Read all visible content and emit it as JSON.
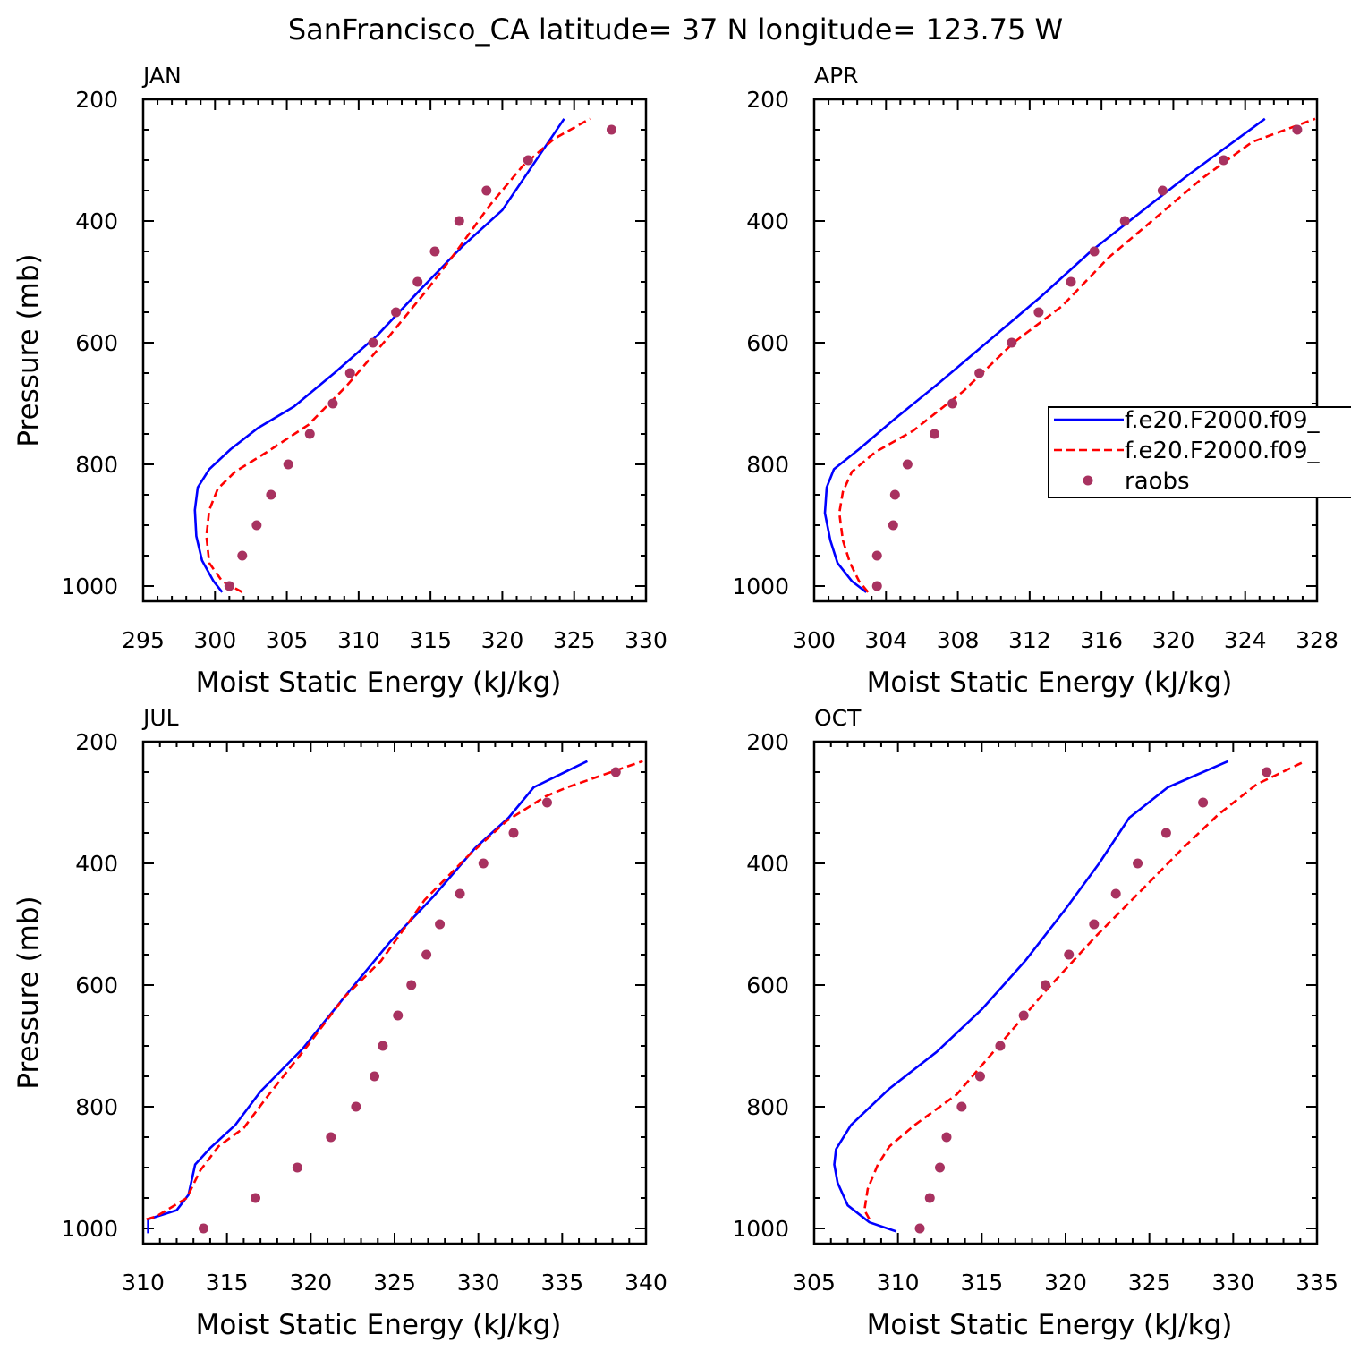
{
  "title": "SanFrancisco_CA  latitude= 37 N longitude= 123.75 W",
  "legend": {
    "entries": [
      "f.e20.F2000.f09_",
      "f.e20.F2000.f09_",
      "raobs"
    ],
    "colors": [
      "#0000ff",
      "#ff0000",
      "#a83260"
    ],
    "styles": [
      "solid",
      "dashed",
      "dots"
    ]
  },
  "chart_data": [
    {
      "type": "line",
      "panel_title": "JAN",
      "xlabel": "Moist Static Energy (kJ/kg)",
      "ylabel": "Pressure (mb)",
      "xlim": [
        295,
        330
      ],
      "ylim": [
        1025,
        200
      ],
      "xticks": [
        295,
        300,
        305,
        310,
        315,
        320,
        325,
        330
      ],
      "yticks": [
        200,
        400,
        600,
        800,
        1000
      ],
      "series": [
        {
          "name": "f.e20.F2000.f09_",
          "style": "solid",
          "color": "#0000ff",
          "x": [
            300.5,
            299.9,
            299.1,
            298.7,
            298.6,
            298.8,
            299.6,
            301.1,
            303.0,
            305.5,
            308.3,
            311.3,
            314.2,
            317.2,
            320.0,
            324.3
          ],
          "y": [
            1010,
            992,
            958,
            918,
            875,
            838,
            808,
            775,
            740,
            705,
            650,
            588,
            515,
            442,
            382,
            232
          ]
        },
        {
          "name": "f.e20.F2000.f09_",
          "style": "dashed",
          "color": "#ff0000",
          "x": [
            301.9,
            300.5,
            299.6,
            299.4,
            299.6,
            300.2,
            301.4,
            303.6,
            306.5,
            309.2,
            312.1,
            314.8,
            316.8,
            319.1,
            321.4,
            323.6,
            326.1
          ],
          "y": [
            1010,
            992,
            962,
            918,
            875,
            840,
            812,
            780,
            735,
            670,
            590,
            512,
            450,
            375,
            310,
            265,
            232
          ]
        },
        {
          "name": "raobs",
          "style": "dots",
          "color": "#a83260",
          "x": [
            301.0,
            301.9,
            302.9,
            303.9,
            305.1,
            306.6,
            308.2,
            309.4,
            311.0,
            312.6,
            314.1,
            315.3,
            317.0,
            318.9,
            321.8,
            327.6
          ],
          "y": [
            1000,
            950,
            900,
            850,
            800,
            750,
            700,
            650,
            600,
            550,
            500,
            450,
            400,
            350,
            300,
            250
          ]
        }
      ]
    },
    {
      "type": "line",
      "panel_title": "APR",
      "xlabel": "Moist Static Energy (kJ/kg)",
      "ylabel": "",
      "xlim": [
        300,
        328
      ],
      "ylim": [
        1025,
        200
      ],
      "xticks": [
        300,
        304,
        308,
        312,
        316,
        320,
        324,
        328
      ],
      "yticks": [
        200,
        400,
        600,
        800,
        1000
      ],
      "series": [
        {
          "name": "f.e20.F2000.f09_",
          "style": "solid",
          "color": "#0000ff",
          "x": [
            302.9,
            302.1,
            301.3,
            300.9,
            300.6,
            300.7,
            301.1,
            302.5,
            304.5,
            307.0,
            309.8,
            312.6,
            315.4,
            318.2,
            320.8,
            325.1
          ],
          "y": [
            1010,
            992,
            962,
            925,
            880,
            838,
            808,
            775,
            725,
            665,
            595,
            525,
            450,
            385,
            325,
            232
          ]
        },
        {
          "name": "f.e20.F2000.f09_",
          "style": "dashed",
          "color": "#ff0000",
          "x": [
            303.0,
            302.5,
            302.0,
            301.6,
            301.4,
            301.6,
            302.1,
            303.4,
            305.5,
            308.3,
            311.1,
            313.8,
            316.4,
            319.0,
            321.6,
            324.4,
            327.9
          ],
          "y": [
            1010,
            992,
            962,
            925,
            880,
            845,
            812,
            780,
            745,
            680,
            600,
            540,
            460,
            395,
            330,
            270,
            232
          ]
        },
        {
          "name": "raobs",
          "style": "dots",
          "color": "#a83260",
          "x": [
            303.5,
            303.5,
            304.4,
            304.5,
            305.2,
            306.7,
            307.7,
            309.2,
            311.0,
            312.5,
            314.3,
            315.6,
            317.3,
            319.4,
            322.8,
            326.9
          ],
          "y": [
            1000,
            950,
            900,
            850,
            800,
            750,
            700,
            650,
            600,
            550,
            500,
            450,
            400,
            350,
            300,
            250
          ]
        }
      ]
    },
    {
      "type": "line",
      "panel_title": "JUL",
      "xlabel": "Moist Static Energy (kJ/kg)",
      "ylabel": "Pressure (mb)",
      "xlim": [
        310,
        340
      ],
      "ylim": [
        1025,
        200
      ],
      "xticks": [
        310,
        315,
        320,
        325,
        330,
        335,
        340
      ],
      "yticks": [
        200,
        400,
        600,
        800,
        1000
      ],
      "series": [
        {
          "name": "f.e20.F2000.f09_",
          "style": "solid",
          "color": "#0000ff",
          "x": [
            310.3,
            310.3,
            310.3,
            312.0,
            312.7,
            313.1,
            314.0,
            315.5,
            317.0,
            319.5,
            322.0,
            324.7,
            327.3,
            329.8,
            331.8,
            333.3,
            336.5
          ],
          "y": [
            1008,
            995,
            985,
            970,
            945,
            895,
            868,
            830,
            775,
            705,
            620,
            530,
            455,
            375,
            325,
            275,
            232
          ]
        },
        {
          "name": "f.e20.F2000.f09_",
          "style": "dashed",
          "color": "#ff0000",
          "x": [
            310.2,
            310.8,
            312.6,
            313.4,
            314.5,
            316.0,
            317.5,
            319.8,
            322.0,
            324.2,
            326.8,
            329.3,
            331.7,
            334.0,
            335.3,
            339.8
          ],
          "y": [
            985,
            980,
            950,
            905,
            865,
            835,
            780,
            700,
            620,
            560,
            460,
            390,
            330,
            290,
            275,
            232
          ]
        },
        {
          "name": "raobs",
          "style": "dots",
          "color": "#a83260",
          "x": [
            313.6,
            316.7,
            319.2,
            321.2,
            322.7,
            323.8,
            324.3,
            325.2,
            326.0,
            326.9,
            327.7,
            328.9,
            330.3,
            332.1,
            334.1,
            338.2
          ],
          "y": [
            1000,
            950,
            900,
            850,
            800,
            750,
            700,
            650,
            600,
            550,
            500,
            450,
            400,
            350,
            300,
            250
          ]
        }
      ]
    },
    {
      "type": "line",
      "panel_title": "OCT",
      "xlabel": "Moist Static Energy (kJ/kg)",
      "ylabel": "",
      "xlim": [
        305,
        335
      ],
      "ylim": [
        1025,
        200
      ],
      "xticks": [
        305,
        310,
        315,
        320,
        325,
        330,
        335
      ],
      "yticks": [
        200,
        400,
        600,
        800,
        1000
      ],
      "series": [
        {
          "name": "f.e20.F2000.f09_",
          "style": "solid",
          "color": "#0000ff",
          "x": [
            309.9,
            308.3,
            307.0,
            306.4,
            306.2,
            306.3,
            307.2,
            309.5,
            312.3,
            315.0,
            317.6,
            320.0,
            322.0,
            323.8,
            326.1,
            329.7
          ],
          "y": [
            1005,
            990,
            962,
            925,
            895,
            870,
            830,
            770,
            710,
            640,
            560,
            475,
            400,
            325,
            275,
            232
          ]
        },
        {
          "name": "f.e20.F2000.f09_",
          "style": "dashed",
          "color": "#ff0000",
          "x": [
            308.3,
            308.0,
            308.2,
            308.8,
            309.5,
            311.0,
            313.5,
            316.0,
            318.8,
            321.8,
            324.5,
            327.0,
            329.1,
            331.4,
            334.3
          ],
          "y": [
            985,
            970,
            935,
            895,
            865,
            830,
            780,
            700,
            610,
            520,
            445,
            375,
            320,
            270,
            232
          ]
        },
        {
          "name": "raobs",
          "style": "dots",
          "color": "#a83260",
          "x": [
            311.3,
            311.9,
            312.5,
            312.9,
            313.8,
            314.9,
            316.1,
            317.5,
            318.8,
            320.2,
            321.7,
            323.0,
            324.3,
            326.0,
            328.2,
            332.0
          ],
          "y": [
            1000,
            950,
            900,
            850,
            800,
            750,
            700,
            650,
            600,
            550,
            500,
            450,
            400,
            350,
            300,
            250
          ]
        }
      ]
    }
  ]
}
